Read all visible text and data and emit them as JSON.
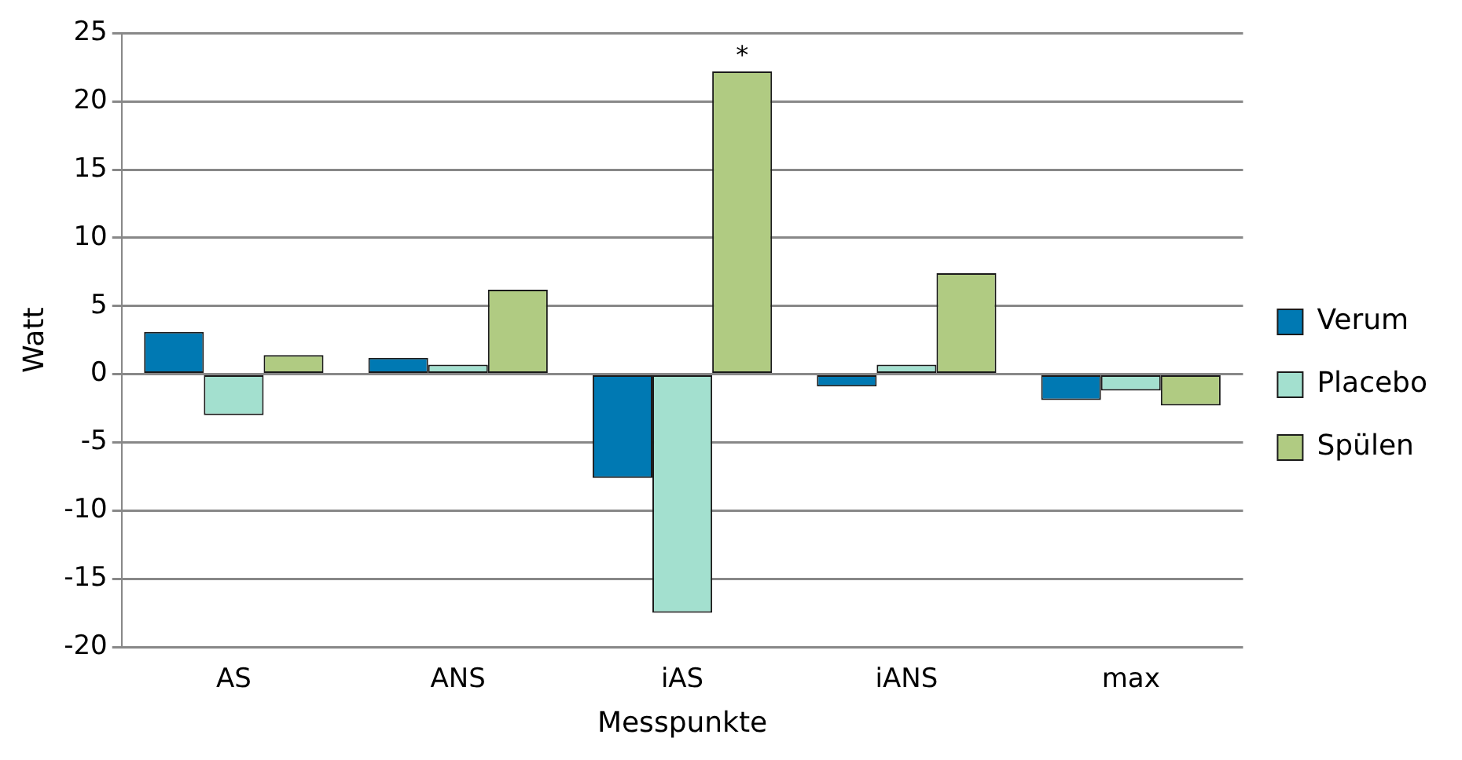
{
  "chart_data": {
    "type": "bar",
    "xlabel": "Messpunkte",
    "ylabel": "Watt",
    "categories": [
      "AS",
      "ANS",
      "iAS",
      "iANS",
      "max"
    ],
    "series": [
      {
        "name": "Verum",
        "color": "#0079b3",
        "values": [
          3.1,
          1.2,
          -7.6,
          -0.9,
          -1.9
        ]
      },
      {
        "name": "Placebo",
        "color": "#a3e0cf",
        "values": [
          -3.0,
          0.7,
          -17.5,
          0.7,
          -1.2
        ]
      },
      {
        "name": "Spülen",
        "color": "#b0cb82",
        "values": [
          1.4,
          6.2,
          22.2,
          7.4,
          -2.3
        ]
      }
    ],
    "ylim": [
      -20,
      25
    ],
    "yticks": [
      -20,
      -15,
      -10,
      -5,
      0,
      5,
      10,
      15,
      20,
      25
    ],
    "grid": "y",
    "legend": "right",
    "annotations": [
      "*"
    ]
  }
}
